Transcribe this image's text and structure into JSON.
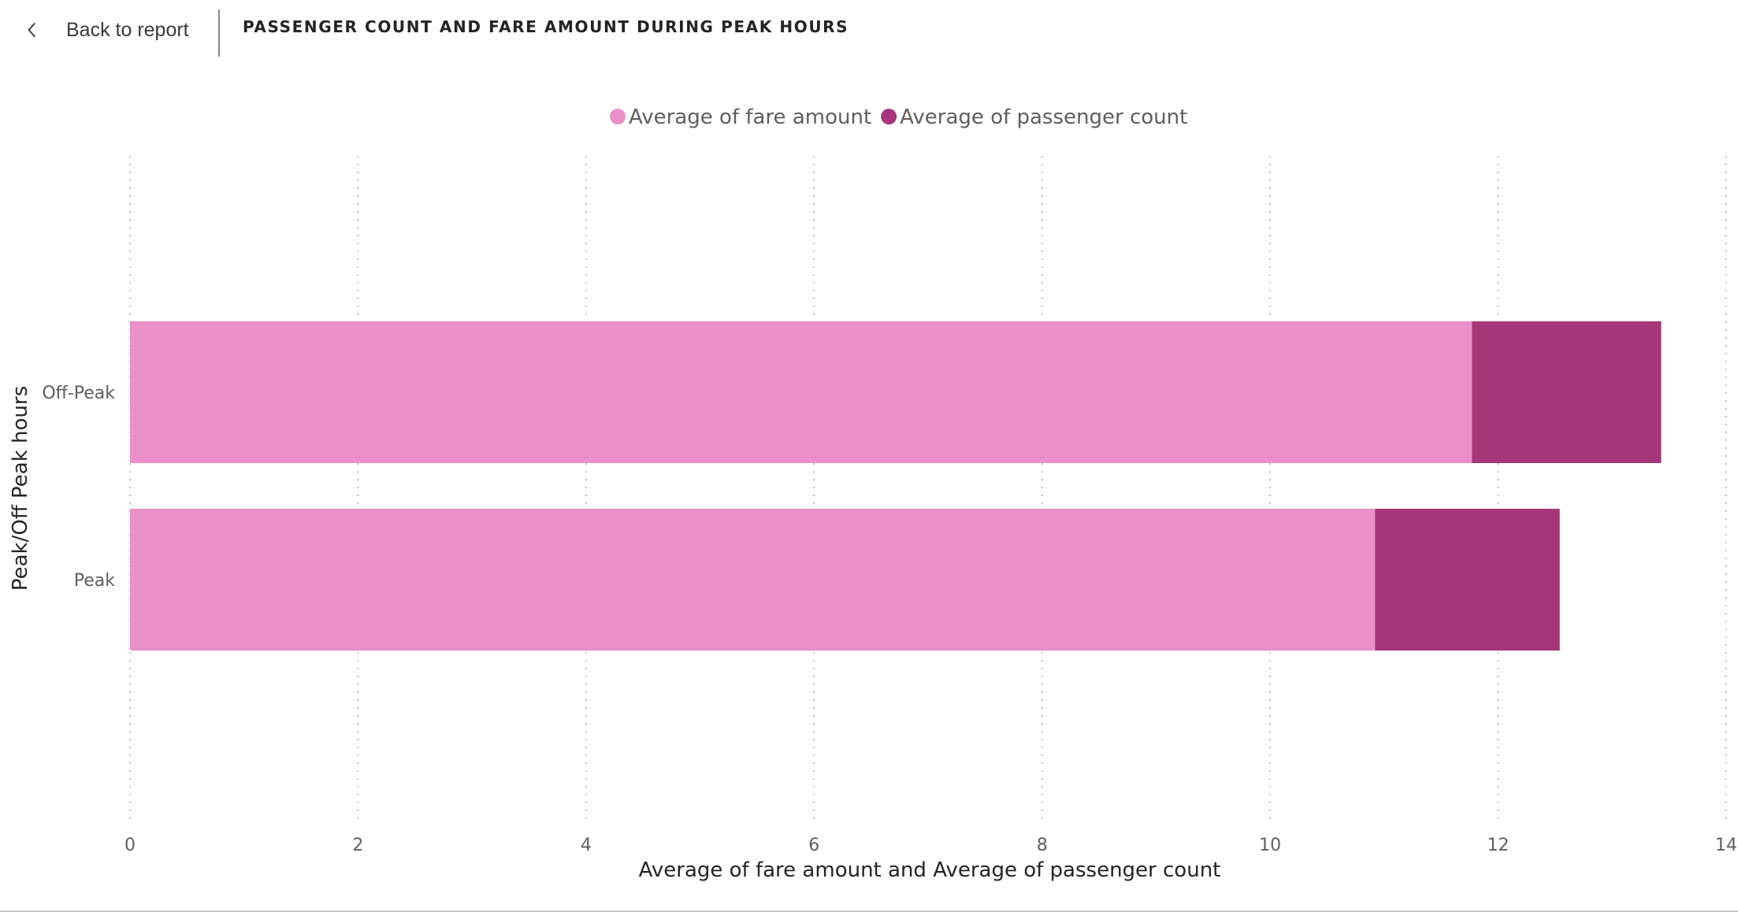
{
  "header": {
    "back_label": "Back to report",
    "title": "PASSENGER COUNT AND FARE AMOUNT DURING PEAK HOURS"
  },
  "colors": {
    "fare": "#EB8FC9",
    "passenger": "#A5367A",
    "grid": "#c8c6c4",
    "text": "#605e5c"
  },
  "chart_data": {
    "type": "bar",
    "orientation": "horizontal",
    "stacked": true,
    "categories": [
      "Off-Peak",
      "Peak"
    ],
    "series": [
      {
        "name": "Average of fare amount",
        "values": [
          11.77,
          10.92
        ]
      },
      {
        "name": "Average of passenger count",
        "values": [
          1.66,
          1.62
        ]
      }
    ],
    "xlabel": "Average of fare amount and Average of passenger count",
    "ylabel": "Peak/Off Peak hours",
    "xlim": [
      0,
      14
    ],
    "xticks": [
      0,
      2,
      4,
      6,
      8,
      10,
      12,
      14
    ],
    "grid": "vertical dotted",
    "legend": "top-center"
  }
}
